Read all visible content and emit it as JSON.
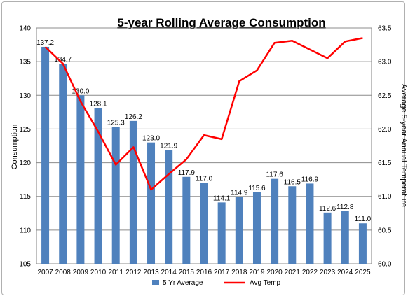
{
  "chart_data": {
    "type": "bar",
    "title": "5-year Rolling Average Consumption",
    "ylabel": "Consumption",
    "y2label": "Average 5-year Annual Temperature",
    "xlabel": "",
    "categories": [
      "2007",
      "2008",
      "2009",
      "2010",
      "2011",
      "2012",
      "2013",
      "2014",
      "2015",
      "2016",
      "2017",
      "2018",
      "2019",
      "2020",
      "2021",
      "2022",
      "2023",
      "2024",
      "2025"
    ],
    "ylim": [
      105,
      140
    ],
    "yticks": [
      "105",
      "110",
      "115",
      "120",
      "125",
      "130",
      "135",
      "140"
    ],
    "y2lim": [
      60.0,
      63.5
    ],
    "y2ticks": [
      "60.0",
      "60.5",
      "61.0",
      "61.5",
      "62.0",
      "62.5",
      "63.0",
      "63.5"
    ],
    "grid": true,
    "legend_position": "bottom",
    "series": [
      {
        "name": "5 Yr Average",
        "type": "bar",
        "axis": "left",
        "color": "#4f81bd",
        "values": [
          137.2,
          134.7,
          130.0,
          128.1,
          125.3,
          126.2,
          123.0,
          121.9,
          117.9,
          117.0,
          114.1,
          114.9,
          115.6,
          117.6,
          116.5,
          116.9,
          112.6,
          112.8,
          111.0
        ],
        "labels": [
          "137.2",
          "134.7",
          "130.0",
          "128.1",
          "125.3",
          "126.2",
          "123.0",
          "121.9",
          "117.9",
          "117.0",
          "114.1",
          "114.9",
          "115.6",
          "117.6",
          "116.5",
          "116.9",
          "112.6",
          "112.8",
          "111.0"
        ]
      },
      {
        "name": "Avg Temp",
        "type": "line",
        "axis": "right",
        "color": "#ff0000",
        "values": [
          63.22,
          62.97,
          62.41,
          61.96,
          61.47,
          61.73,
          61.1,
          61.33,
          61.55,
          61.91,
          61.85,
          62.71,
          62.87,
          63.28,
          63.31,
          63.18,
          63.05,
          63.3,
          63.35
        ]
      }
    ]
  }
}
